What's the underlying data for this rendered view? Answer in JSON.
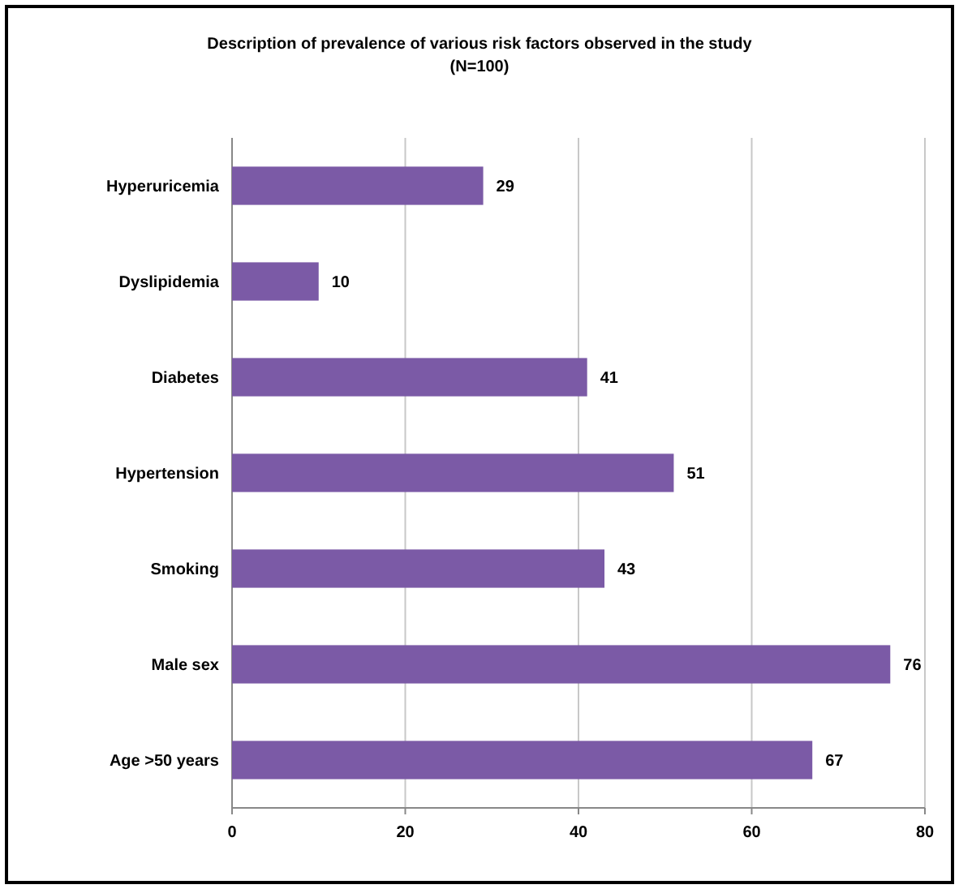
{
  "chart_data": {
    "type": "bar",
    "orientation": "horizontal",
    "title": "Description of prevalence of various risk factors  observed in the study",
    "subtitle": "(N=100)",
    "categories": [
      "Hyperuricemia",
      "Dyslipidemia",
      "Diabetes",
      "Hypertension",
      "Smoking",
      "Male sex",
      "Age >50 years"
    ],
    "values": [
      29,
      10,
      41,
      51,
      43,
      76,
      67
    ],
    "color": "#7b5aa6",
    "xlim": [
      0,
      80
    ],
    "xticks": [
      0,
      20,
      40,
      60,
      80
    ],
    "grid": "x",
    "data_labels": true
  }
}
